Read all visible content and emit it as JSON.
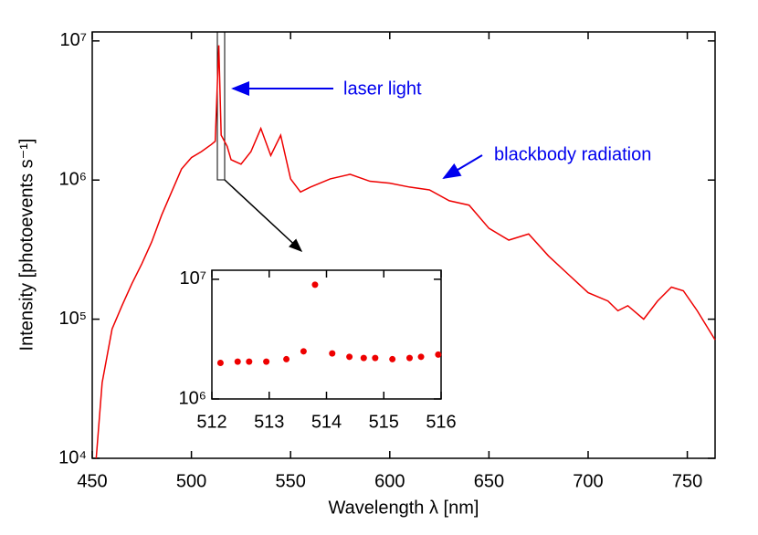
{
  "chart_data": [
    {
      "type": "line",
      "xlabel": "Wavelength λ [nm]",
      "ylabel": "Intensity [photoevents s⁻¹]",
      "annotations": [
        "laser light",
        "blackbody radiation"
      ],
      "log_y": true,
      "color": "#ee0000",
      "xlim": [
        450,
        764
      ],
      "ylim": [
        10000,
        11600000
      ],
      "xticks": [
        450,
        500,
        550,
        600,
        650,
        700,
        750
      ],
      "yticks": [
        {
          "value": 10000,
          "label": "10⁴"
        },
        {
          "value": 100000,
          "label": "10⁵"
        },
        {
          "value": 1000000,
          "label": "10⁶"
        },
        {
          "value": 10000000,
          "label": "10⁷"
        }
      ],
      "x": [
        452,
        455,
        460,
        465,
        470,
        475,
        480,
        485,
        490,
        495,
        500,
        505,
        510,
        512,
        513.8,
        515,
        518,
        520,
        525,
        530,
        535,
        540,
        545,
        550,
        555,
        560,
        570,
        580,
        590,
        600,
        610,
        620,
        630,
        640,
        650,
        660,
        670,
        680,
        690,
        700,
        710,
        715,
        720,
        728,
        735,
        742,
        748,
        755,
        764
      ],
      "y": [
        10000,
        35000,
        85000,
        125000,
        180000,
        250000,
        360000,
        560000,
        820000,
        1200000,
        1450000,
        1600000,
        1800000,
        1900000,
        9300000,
        2100000,
        1750000,
        1400000,
        1300000,
        1600000,
        2350000,
        1500000,
        2100000,
        1020000,
        820000,
        890000,
        1020000,
        1100000,
        980000,
        950000,
        890000,
        850000,
        710000,
        660000,
        450000,
        370000,
        410000,
        285000,
        210000,
        155000,
        135000,
        115000,
        125000,
        100000,
        135000,
        170000,
        160000,
        115000,
        71000
      ]
    },
    {
      "type": "scatter",
      "color": "#ee0000",
      "log_y": true,
      "xlim": [
        512,
        516
      ],
      "ylim": [
        1000000,
        11900000
      ],
      "xticks": [
        512,
        513,
        514,
        515,
        516
      ],
      "yticks": [
        {
          "value": 1000000,
          "label": "10⁶"
        },
        {
          "value": 10000000,
          "label": "10⁷"
        }
      ],
      "x": [
        512.15,
        512.45,
        512.65,
        512.95,
        513.3,
        513.6,
        513.8,
        514.1,
        514.4,
        514.65,
        514.85,
        515.15,
        515.45,
        515.65,
        515.95
      ],
      "y": [
        2000000,
        2050000,
        2050000,
        2050000,
        2150000,
        2500000,
        9000000,
        2400000,
        2250000,
        2200000,
        2200000,
        2150000,
        2200000,
        2250000,
        2350000
      ]
    }
  ]
}
